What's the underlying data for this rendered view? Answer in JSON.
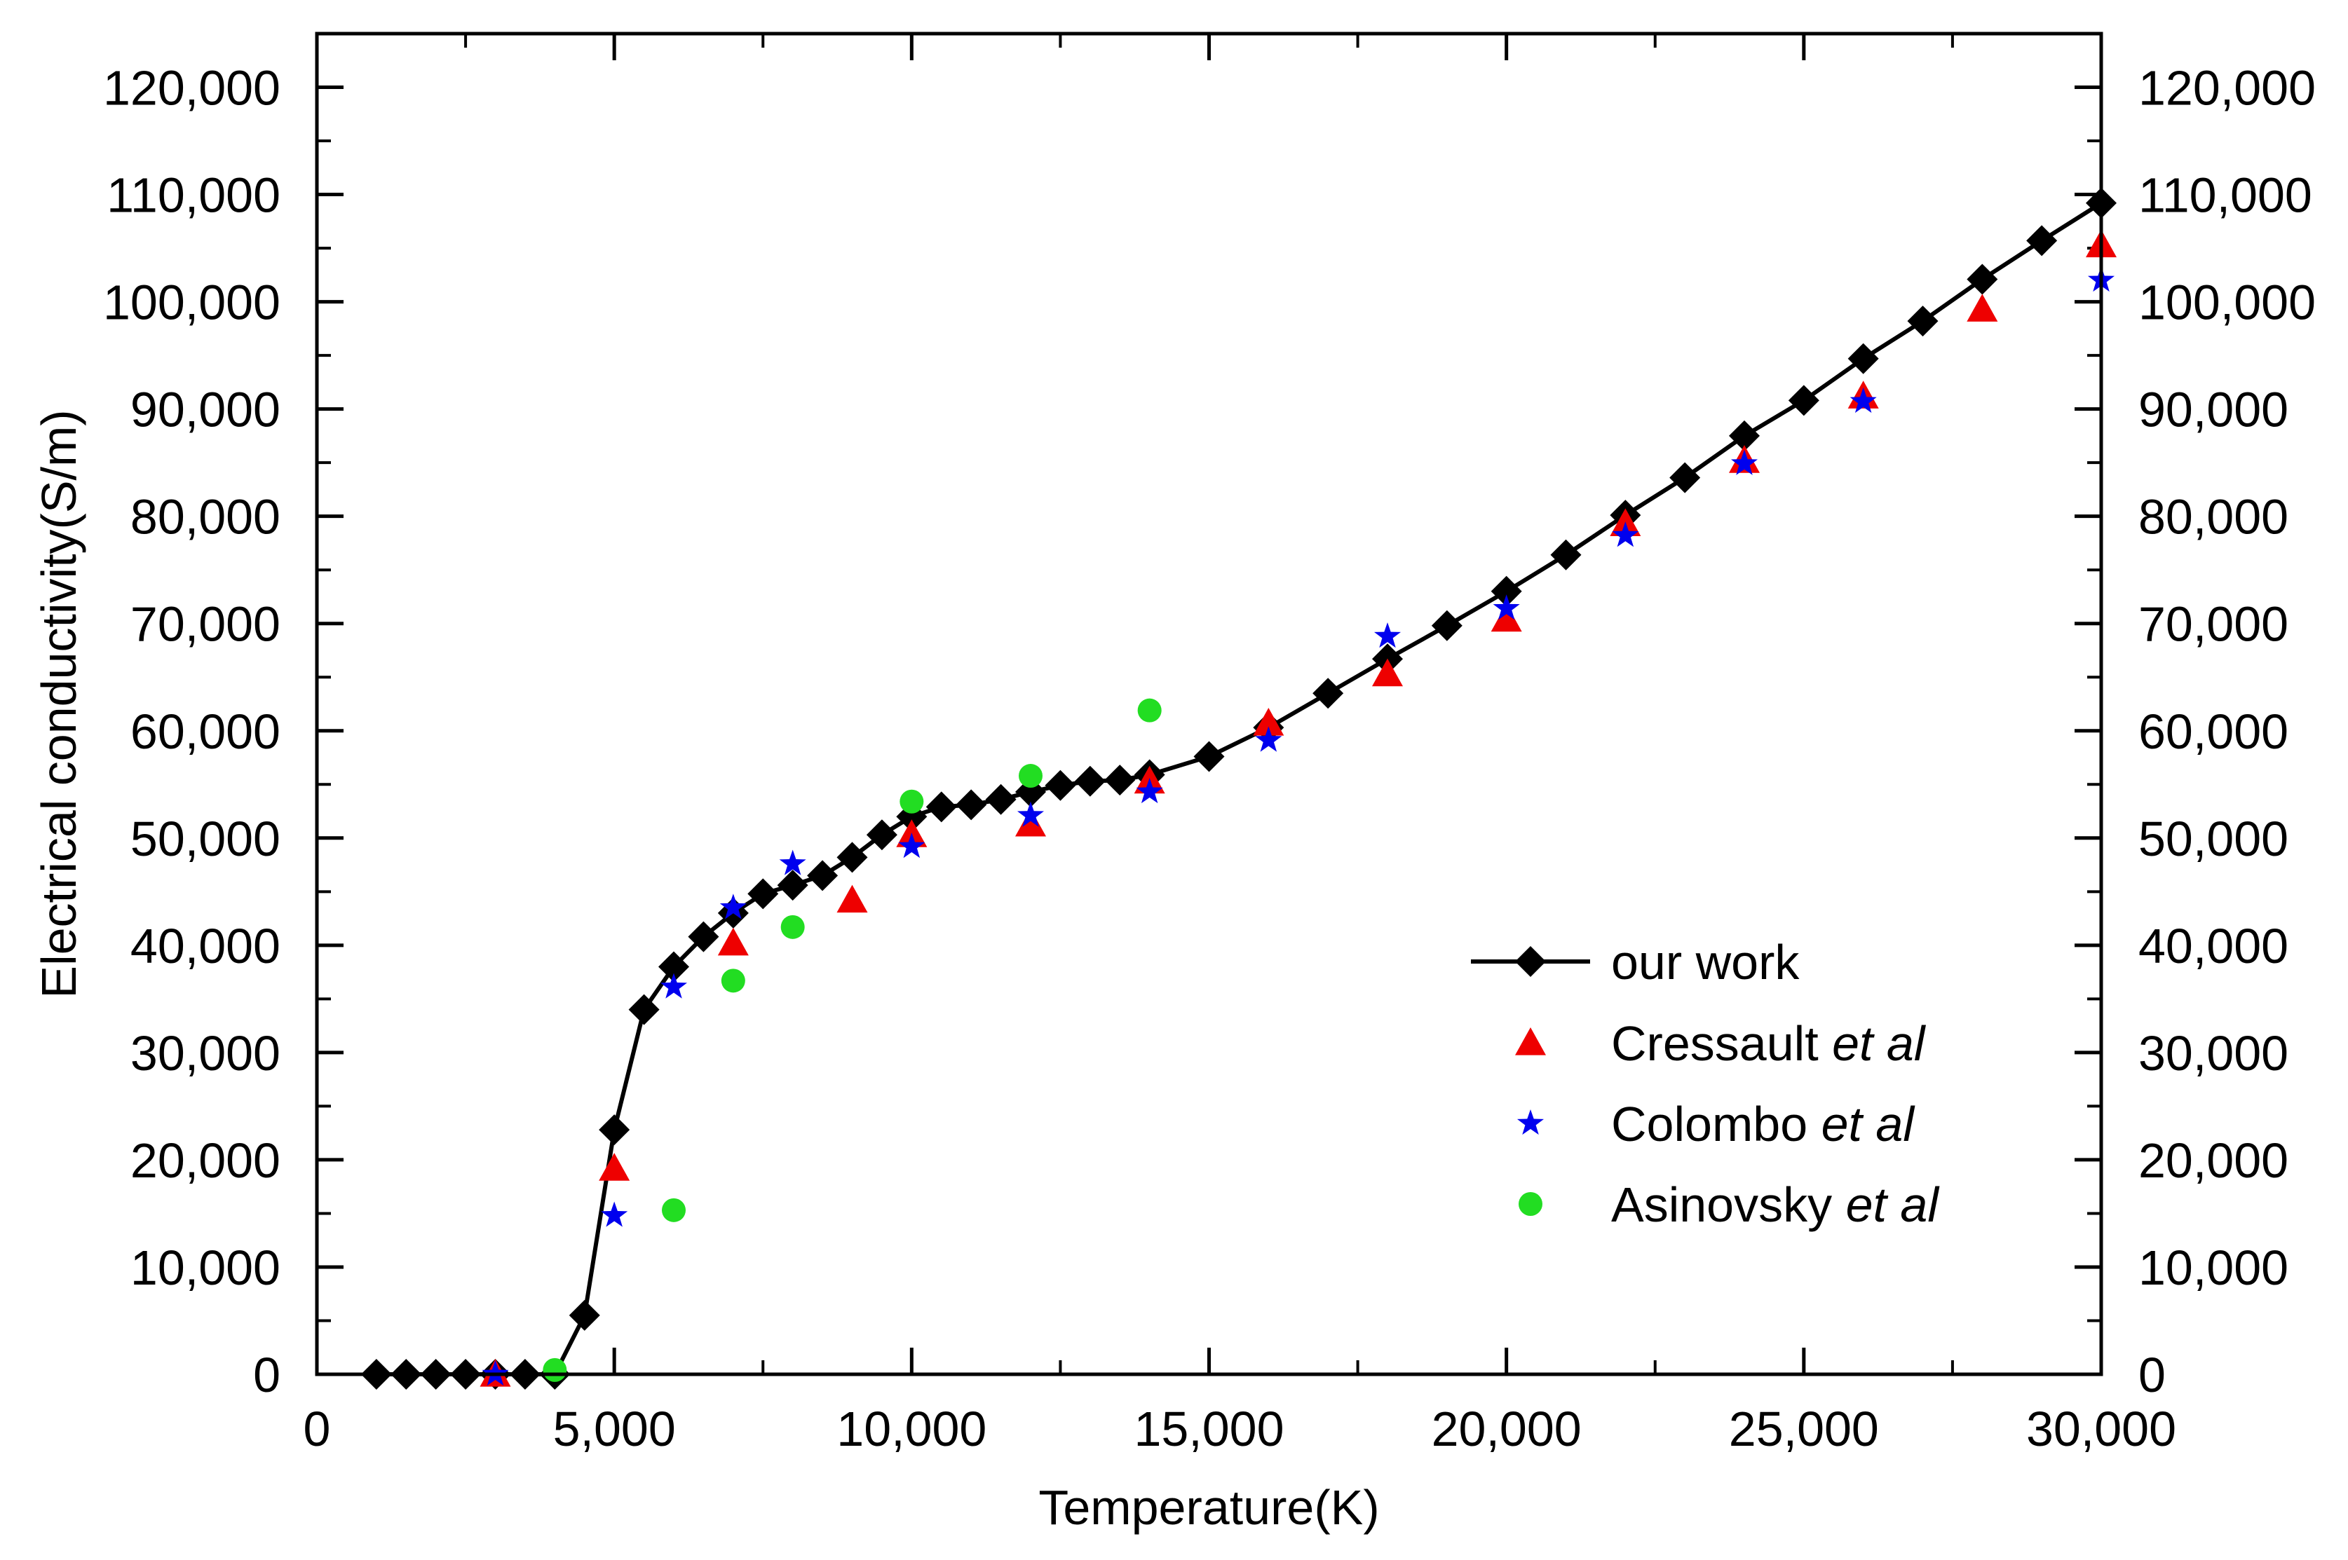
{
  "chart_data": {
    "type": "line",
    "title": "",
    "xlabel": "Temperature(K)",
    "ylabel": "Electrical conductivity(S/m)",
    "xlim": [
      0,
      30000
    ],
    "ylim": [
      0,
      125000
    ],
    "xticks": [
      0,
      5000,
      10000,
      15000,
      20000,
      25000,
      30000
    ],
    "xtick_labels": [
      "0",
      "5,000",
      "10,000",
      "15,000",
      "20,000",
      "25,000",
      "30,000"
    ],
    "yticks": [
      0,
      10000,
      20000,
      30000,
      40000,
      50000,
      60000,
      70000,
      80000,
      90000,
      100000,
      110000,
      120000
    ],
    "ytick_labels": [
      "0",
      "10,000",
      "20,000",
      "30,000",
      "40,000",
      "50,000",
      "60,000",
      "70,000",
      "80,000",
      "90,000",
      "100,000",
      "110,000",
      "120,000"
    ],
    "legend_position": "lower-right",
    "grid": false,
    "series": [
      {
        "name": "our work",
        "label_parts": [
          "our work",
          ""
        ],
        "style": "line-marker",
        "marker": "diamond",
        "color": "#000000",
        "points": [
          [
            1000,
            0
          ],
          [
            1500,
            0
          ],
          [
            2000,
            0
          ],
          [
            2500,
            0
          ],
          [
            3000,
            0
          ],
          [
            3500,
            0
          ],
          [
            4000,
            0
          ],
          [
            4500,
            5500
          ],
          [
            5000,
            22800
          ],
          [
            5500,
            34000
          ],
          [
            6000,
            38000
          ],
          [
            6500,
            40800
          ],
          [
            7000,
            43000
          ],
          [
            7500,
            44800
          ],
          [
            8000,
            45600
          ],
          [
            8500,
            46500
          ],
          [
            9000,
            48200
          ],
          [
            9500,
            50300
          ],
          [
            10000,
            52000
          ],
          [
            10500,
            52900
          ],
          [
            11000,
            53100
          ],
          [
            11500,
            53600
          ],
          [
            12000,
            54300
          ],
          [
            12500,
            54900
          ],
          [
            13000,
            55300
          ],
          [
            13500,
            55400
          ],
          [
            14000,
            55900
          ],
          [
            15000,
            57600
          ],
          [
            16000,
            60300
          ],
          [
            17000,
            63500
          ],
          [
            18000,
            66700
          ],
          [
            19000,
            69800
          ],
          [
            20000,
            73000
          ],
          [
            21000,
            76400
          ],
          [
            22000,
            80100
          ],
          [
            23000,
            83600
          ],
          [
            24000,
            87500
          ],
          [
            25000,
            90800
          ],
          [
            26000,
            94700
          ],
          [
            27000,
            98200
          ],
          [
            28000,
            102100
          ],
          [
            29000,
            105700
          ],
          [
            30000,
            109200
          ]
        ]
      },
      {
        "name": "Cressault et al",
        "label_parts": [
          "Cressault ",
          "et al"
        ],
        "style": "marker",
        "marker": "triangle",
        "color": "#ee0000",
        "points": [
          [
            3000,
            0
          ],
          [
            5000,
            19200
          ],
          [
            7000,
            40200
          ],
          [
            9000,
            44200
          ],
          [
            10000,
            50300
          ],
          [
            12000,
            51300
          ],
          [
            14000,
            55300
          ],
          [
            16000,
            60700
          ],
          [
            18000,
            65300
          ],
          [
            20000,
            70400
          ],
          [
            22000,
            79300
          ],
          [
            24000,
            85200
          ],
          [
            26000,
            91200
          ],
          [
            28000,
            99300
          ],
          [
            30000,
            105300
          ]
        ]
      },
      {
        "name": "Colombo et al",
        "label_parts": [
          "Colombo ",
          "et al"
        ],
        "style": "marker",
        "marker": "star",
        "color": "#0000ee",
        "points": [
          [
            3000,
            0
          ],
          [
            5000,
            14800
          ],
          [
            6000,
            36100
          ],
          [
            7000,
            43500
          ],
          [
            8000,
            47600
          ],
          [
            10000,
            49200
          ],
          [
            12000,
            52100
          ],
          [
            14000,
            54300
          ],
          [
            16000,
            59100
          ],
          [
            18000,
            68800
          ],
          [
            20000,
            71400
          ],
          [
            22000,
            78200
          ],
          [
            24000,
            84900
          ],
          [
            26000,
            90700
          ],
          [
            30000,
            102000
          ]
        ]
      },
      {
        "name": "Asinovsky et al",
        "label_parts": [
          "Asinovsky ",
          "et al"
        ],
        "style": "marker",
        "marker": "circle",
        "color": "#22dd22",
        "points": [
          [
            4000,
            400
          ],
          [
            6000,
            15300
          ],
          [
            7000,
            36700
          ],
          [
            8000,
            41700
          ],
          [
            10000,
            53400
          ],
          [
            12000,
            55800
          ],
          [
            14000,
            61900
          ]
        ]
      }
    ]
  }
}
